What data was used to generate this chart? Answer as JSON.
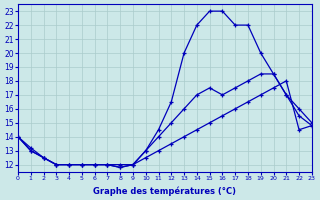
{
  "xlabel": "Graphe des températures (°C)",
  "xlim": [
    0,
    23
  ],
  "ylim": [
    11.5,
    23.5
  ],
  "xticks": [
    0,
    1,
    2,
    3,
    4,
    5,
    6,
    7,
    8,
    9,
    10,
    11,
    12,
    13,
    14,
    15,
    16,
    17,
    18,
    19,
    20,
    21,
    22,
    23
  ],
  "yticks": [
    12,
    13,
    14,
    15,
    16,
    17,
    18,
    19,
    20,
    21,
    22,
    23
  ],
  "background_color": "#cce8e8",
  "grid_color": "#aacccc",
  "line_color": "#0000bb",
  "lines": [
    {
      "x": [
        0,
        1,
        2,
        3,
        4,
        5,
        6,
        7,
        8,
        9,
        10,
        11,
        12,
        13,
        14,
        15,
        16,
        17,
        18,
        19,
        20,
        21,
        22,
        23
      ],
      "y": [
        14,
        13,
        12.5,
        12,
        12,
        12,
        12,
        12,
        11.8,
        12,
        13,
        14.5,
        16.5,
        20,
        22,
        23,
        23,
        22,
        22,
        20,
        18.5,
        17,
        15.5,
        14.8
      ]
    },
    {
      "x": [
        0,
        1,
        2,
        3,
        4,
        5,
        6,
        7,
        8,
        9,
        10,
        11,
        12,
        13,
        14,
        15,
        16,
        17,
        18,
        19,
        20,
        21,
        22,
        23
      ],
      "y": [
        14,
        13,
        12.5,
        12,
        12,
        12,
        12,
        12,
        11.8,
        12,
        13,
        14,
        15,
        16,
        17,
        17.5,
        17,
        17.5,
        18,
        18.5,
        18.5,
        17,
        16,
        15
      ]
    },
    {
      "x": [
        0,
        1,
        2,
        3,
        4,
        5,
        6,
        7,
        8,
        9,
        10,
        11,
        12,
        13,
        14,
        15,
        16,
        17,
        18,
        19,
        20,
        21,
        22,
        23
      ],
      "y": [
        14,
        13.2,
        12.5,
        12,
        12,
        12,
        12,
        12,
        12,
        12,
        12.5,
        13,
        13.5,
        14,
        14.5,
        15,
        15.5,
        16,
        16.5,
        17,
        17.5,
        18,
        14.5,
        14.8
      ]
    }
  ]
}
